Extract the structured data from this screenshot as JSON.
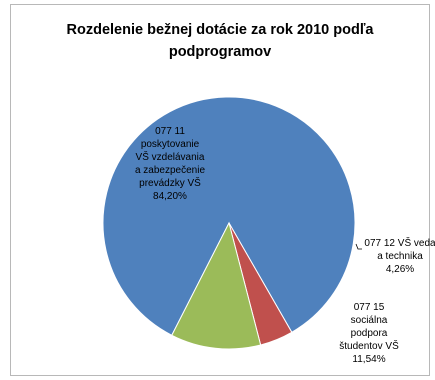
{
  "chart_data": {
    "type": "pie",
    "title_lines": [
      "Rozdelenie bežnej dotácie za rok 2010 podľa",
      "podprogramov"
    ],
    "slices": [
      {
        "label_lines": [
          "077 11",
          "poskytovanie",
          "VŠ vzdelávania",
          "a zabezpečenie",
          "prevádzky VŠ",
          "84,20%"
        ],
        "value": 84.2,
        "color": "#4f81bd"
      },
      {
        "label_lines": [
          "077 12 VŠ veda",
          "a technika",
          "4,26%"
        ],
        "value": 4.26,
        "color": "#c0504d"
      },
      {
        "label_lines": [
          "077 15",
          "sociálna",
          "podpora",
          "študentov VŠ",
          "11,54%"
        ],
        "value": 11.54,
        "color": "#9bbb59"
      }
    ]
  }
}
